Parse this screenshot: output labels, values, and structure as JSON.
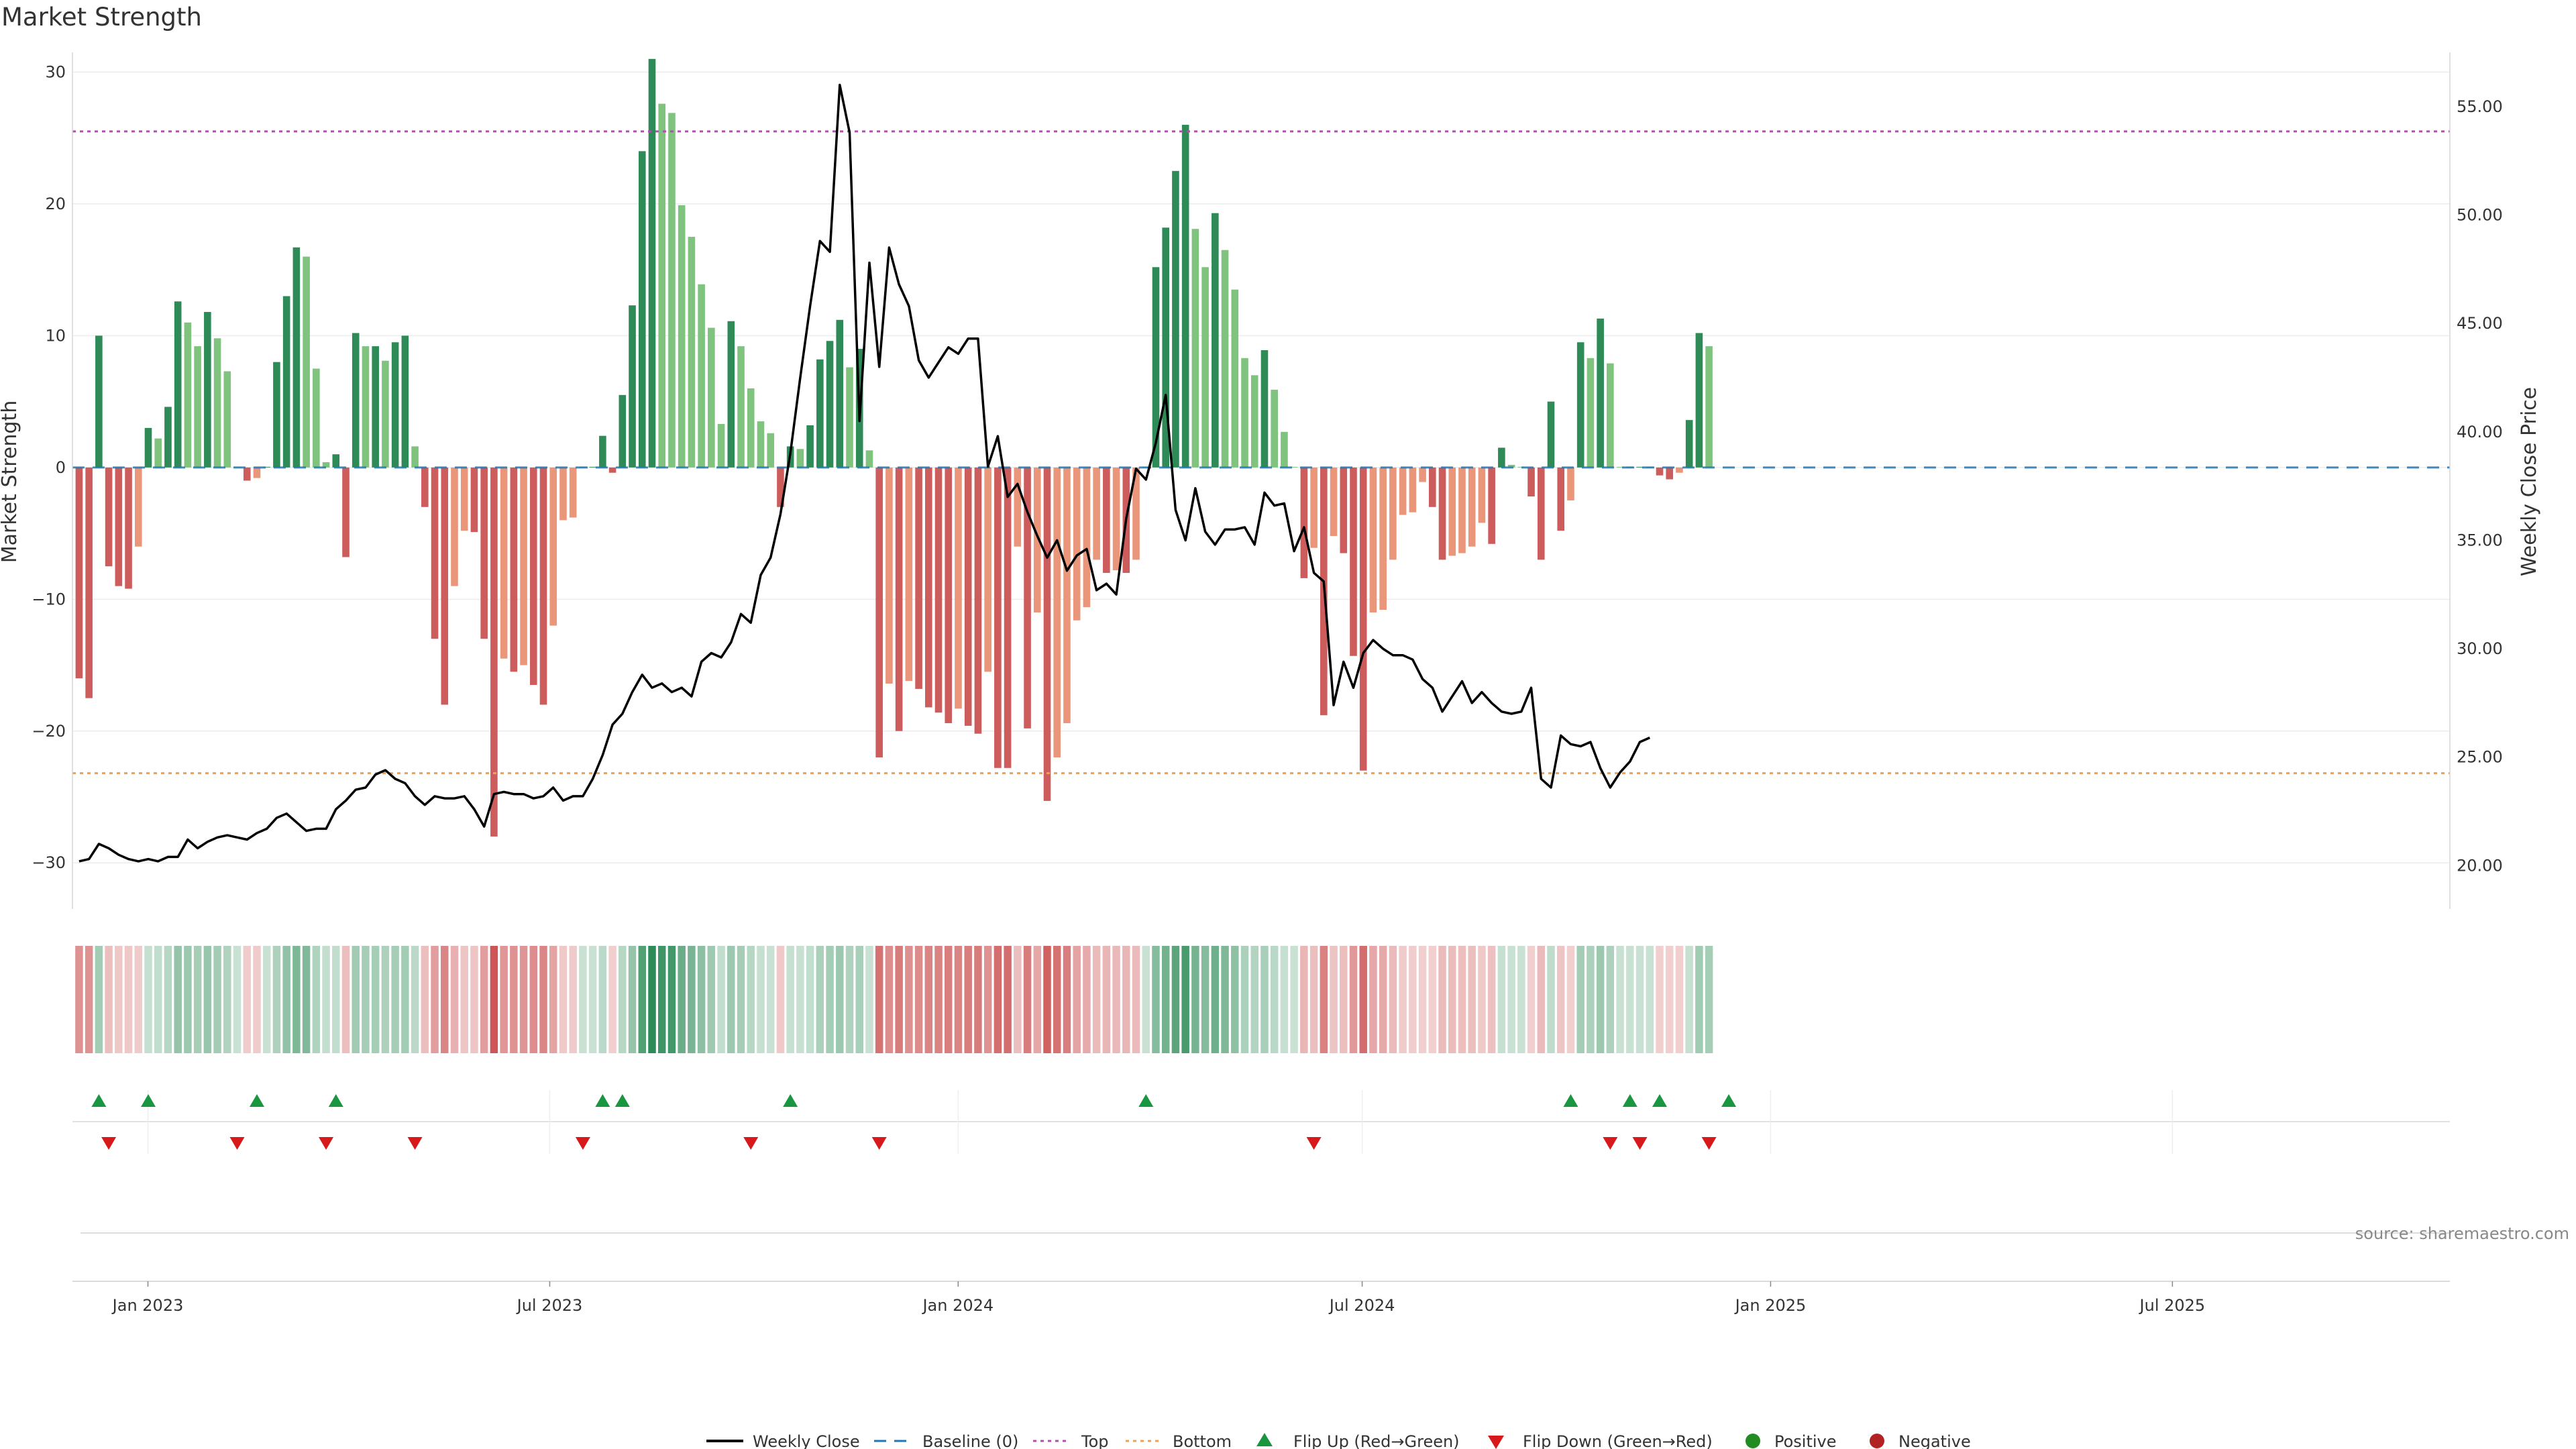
{
  "title": "Market Strength",
  "source": "source: sharemaestro.com",
  "colors": {
    "pos_dark": "#2e8b57",
    "pos_light": "#7fc37f",
    "neg_dark": "#cd5c5c",
    "neg_light": "#e9967a",
    "line": "#000000",
    "baseline": "#1f77b4",
    "top": "#b04fb0",
    "bottom": "#f0a050",
    "flip_up": "#1a9641",
    "flip_down": "#d7191c",
    "positive": "#228b22",
    "negative": "#b22222"
  },
  "chart_data": {
    "type": "bar",
    "ylabel": "Market Strength",
    "y2label": "Weekly Close Price",
    "ylim": [
      -33.5,
      31.5
    ],
    "y2lim": [
      18.0,
      57.5
    ],
    "yticks": [
      30,
      20,
      10,
      0,
      -10,
      -20,
      -30
    ],
    "yticklabels": [
      "30",
      "20",
      "10",
      "0",
      "−10",
      "−20",
      "−30"
    ],
    "y2ticks": [
      55,
      50,
      45,
      40,
      35,
      30,
      25,
      20
    ],
    "y2ticklabels": [
      "55.00",
      "50.00",
      "45.00",
      "40.00",
      "35.00",
      "30.00",
      "25.00",
      "20.00"
    ],
    "xlim": [
      "2022-11-28",
      "2025-11-03"
    ],
    "xticks": [
      "2023-01-01",
      "2023-07-01",
      "2024-01-01",
      "2024-07-01",
      "2025-01-01",
      "2025-07-01"
    ],
    "xticklabels": [
      "Jan 2023",
      "Jul 2023",
      "Jan 2024",
      "Jul 2024",
      "Jan 2025",
      "Jul 2025"
    ],
    "x_start": "2022-12-01",
    "x_step_days": 4.45,
    "top_line": 25.5,
    "bottom_line": -23.2,
    "strength": [
      -16,
      -17.5,
      10,
      -7.5,
      -9,
      -9.2,
      -6,
      3,
      2.2,
      4.6,
      12.6,
      11,
      9.2,
      11.8,
      9.8,
      7.3,
      0,
      -1,
      -0.8,
      0,
      8,
      13,
      16.7,
      16,
      7.5,
      0.4,
      1,
      -6.8,
      10.2,
      9.2,
      9.2,
      8.1,
      9.5,
      10,
      1.6,
      -3,
      -13,
      -18,
      -9,
      -4.8,
      -4.9,
      -13,
      -28,
      -14.5,
      -15.5,
      -15,
      -16.5,
      -18,
      -12,
      -4,
      -3.8,
      0,
      0,
      2.4,
      -0.4,
      5.5,
      12.3,
      24,
      31,
      27.6,
      26.9,
      19.9,
      17.5,
      13.9,
      10.6,
      3.3,
      11.1,
      9.2,
      6,
      3.5,
      2.6,
      -3,
      1.6,
      1.4,
      3.2,
      8.2,
      9.6,
      11.2,
      7.6,
      9,
      1.3,
      -22,
      -16.4,
      -20,
      -16.2,
      -16.8,
      -18.2,
      -18.6,
      -19.4,
      -18.3,
      -19.6,
      -20.2,
      -15.5,
      -22.8,
      -22.8,
      -6,
      -19.8,
      -11,
      -25.3,
      -22,
      -19.4,
      -11.6,
      -10.6,
      -7,
      -8,
      -7.8,
      -8,
      -7,
      0,
      15.2,
      18.2,
      22.5,
      26,
      18.1,
      15.2,
      19.3,
      16.5,
      13.5,
      8.3,
      7,
      8.9,
      5.9,
      2.7,
      0,
      -8.4,
      -6.1,
      -18.8,
      -5.2,
      -6.5,
      -14.3,
      -23,
      -11,
      -10.8,
      -7,
      -3.6,
      -3.4,
      -1.1,
      -3,
      -7,
      -6.7,
      -6.5,
      -6,
      -4.2,
      -5.8,
      1.5,
      0.2,
      0,
      -2.2,
      -7,
      5,
      -4.8,
      -2.5,
      9.5,
      8.3,
      11.3,
      7.9,
      0,
      0,
      0,
      0,
      -0.6,
      -0.9,
      -0.4,
      3.6,
      10.2,
      9.2
    ],
    "price": [
      20.2,
      20.3,
      21.0,
      20.8,
      20.5,
      20.3,
      20.2,
      20.3,
      20.2,
      20.4,
      20.4,
      21.2,
      20.8,
      21.1,
      21.3,
      21.4,
      21.3,
      21.2,
      21.5,
      21.7,
      22.2,
      22.4,
      22.0,
      21.6,
      21.7,
      21.7,
      22.6,
      23.0,
      23.5,
      23.6,
      24.2,
      24.4,
      24.0,
      23.8,
      23.2,
      22.8,
      23.2,
      23.1,
      23.1,
      23.2,
      22.6,
      21.8,
      23.3,
      23.4,
      23.3,
      23.3,
      23.1,
      23.2,
      23.6,
      23.0,
      23.2,
      23.2,
      24.0,
      25.1,
      26.5,
      27.0,
      28.0,
      28.8,
      28.2,
      28.4,
      28.0,
      28.2,
      27.8,
      29.4,
      29.8,
      29.6,
      30.3,
      31.6,
      31.2,
      33.4,
      34.2,
      36.2,
      39.0,
      42.5,
      45.8,
      48.8,
      48.3,
      56.0,
      53.8,
      40.5,
      47.8,
      43.0,
      48.5,
      46.8,
      45.8,
      43.3,
      42.5,
      43.2,
      43.9,
      43.6,
      44.3,
      44.3,
      38.4,
      39.8,
      37.0,
      37.6,
      36.3,
      35.2,
      34.2,
      35.0,
      33.6,
      34.3,
      34.6,
      32.7,
      33.0,
      32.5,
      36.0,
      38.3,
      37.8,
      39.5,
      41.7,
      36.4,
      35.0,
      37.4,
      35.4,
      34.8,
      35.5,
      35.5,
      35.6,
      34.8,
      37.2,
      36.6,
      36.7,
      34.5,
      35.6,
      33.5,
      33.1,
      27.4,
      29.4,
      28.2,
      29.8,
      30.4,
      30.0,
      29.7,
      29.7,
      29.5,
      28.6,
      28.2,
      27.1,
      27.8,
      28.5,
      27.5,
      28.0,
      27.5,
      27.1,
      27.0,
      27.1,
      28.2,
      24.0,
      23.6,
      26.0,
      25.6,
      25.5,
      25.7,
      24.5,
      23.6,
      24.3,
      24.8,
      25.7,
      25.9
    ],
    "heatmap_levels": [
      0.5,
      0.5,
      0.32,
      0.2,
      0.15,
      0.15,
      0.12,
      0.12,
      0.14,
      0.2,
      0.4,
      0.36,
      0.3,
      0.38,
      0.32,
      0.24,
      0.1,
      0.12,
      0.12,
      0.1,
      0.26,
      0.42,
      0.54,
      0.52,
      0.24,
      0.13,
      0.14,
      0.2,
      0.33,
      0.3,
      0.3,
      0.26,
      0.3,
      0.32,
      0.18,
      0.2,
      0.42,
      0.58,
      0.3,
      0.16,
      0.16,
      0.42,
      0.9,
      0.47,
      0.5,
      0.48,
      0.53,
      0.58,
      0.38,
      0.14,
      0.13,
      0.1,
      0.1,
      0.18,
      0.1,
      0.2,
      0.4,
      0.78,
      1.0,
      0.9,
      0.87,
      0.64,
      0.56,
      0.45,
      0.34,
      0.14,
      0.36,
      0.3,
      0.2,
      0.12,
      0.1,
      0.14,
      0.12,
      0.11,
      0.14,
      0.27,
      0.31,
      0.36,
      0.25,
      0.29,
      0.1,
      0.71,
      0.53,
      0.65,
      0.52,
      0.54,
      0.59,
      0.6,
      0.63,
      0.59,
      0.63,
      0.65,
      0.5,
      0.74,
      0.74,
      0.2,
      0.64,
      0.36,
      0.82,
      0.71,
      0.63,
      0.38,
      0.34,
      0.23,
      0.26,
      0.25,
      0.26,
      0.23,
      0.1,
      0.49,
      0.59,
      0.73,
      0.84,
      0.58,
      0.49,
      0.62,
      0.53,
      0.44,
      0.27,
      0.23,
      0.29,
      0.19,
      0.12,
      0.1,
      0.27,
      0.2,
      0.61,
      0.17,
      0.21,
      0.46,
      0.74,
      0.36,
      0.35,
      0.23,
      0.12,
      0.11,
      0.1,
      0.1,
      0.23,
      0.22,
      0.21,
      0.2,
      0.14,
      0.19,
      0.12,
      0.1,
      0.1,
      0.1,
      0.23,
      0.16,
      0.16,
      0.1,
      0.31,
      0.27,
      0.36,
      0.26,
      0.1,
      0.1,
      0.1,
      0.1,
      0.1,
      0.1,
      0.1,
      0.12,
      0.33,
      0.3
    ],
    "flip_up_index": [
      2,
      7,
      18,
      26,
      53,
      55,
      72,
      108,
      151,
      157,
      160,
      167
    ],
    "flip_down_index": [
      3,
      16,
      25,
      34,
      51,
      68,
      81,
      125,
      155,
      158,
      165
    ],
    "legend": {
      "weekly_close": "Weekly Close",
      "baseline": "Baseline (0)",
      "top": "Top",
      "bottom": "Bottom",
      "flip_up": "Flip Up (Red→Green)",
      "flip_down": "Flip Down (Green→Red)",
      "positive": "Positive",
      "negative": "Negative"
    }
  }
}
